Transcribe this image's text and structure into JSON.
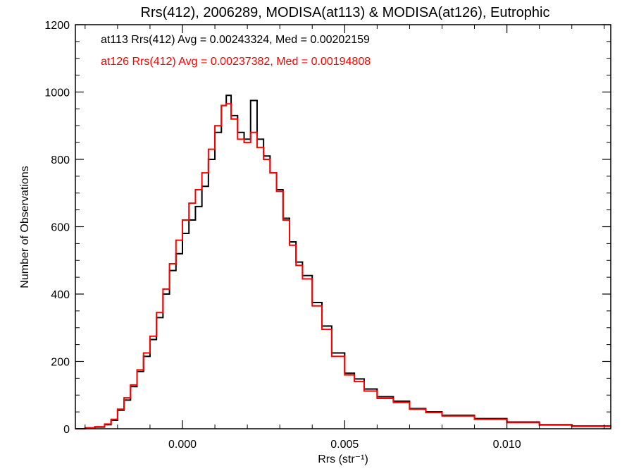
{
  "chart_data": {
    "type": "line",
    "subtype": "histogram-step",
    "title": "Rrs(412), 2006289, MODISA(at113) & MODISA(at126), Eutrophic",
    "xlabel": "Rrs (str⁻¹)",
    "ylabel": "Number of Observations",
    "xlim": [
      -0.0033,
      0.0132
    ],
    "ylim": [
      0,
      1200
    ],
    "x_ticks": [
      0.0,
      0.005,
      0.01
    ],
    "x_tick_labels": [
      "0.000",
      "0.005",
      "0.010"
    ],
    "y_ticks": [
      0,
      200,
      400,
      600,
      800,
      1000,
      1200
    ],
    "y_tick_labels": [
      "0",
      "200",
      "400",
      "600",
      "800",
      "1000",
      "1200"
    ],
    "grid": false,
    "annotations": [
      {
        "text": "at113 Rrs(412) Avg = 0.00243324, Med = 0.00202159",
        "color": "#000000"
      },
      {
        "text": "at126 Rrs(412) Avg = 0.00237382, Med = 0.00194808",
        "color": "#ff0000"
      }
    ],
    "series": [
      {
        "color": "#000000",
        "x": [
          -0.0033,
          -0.003,
          -0.0027,
          -0.0024,
          -0.0022,
          -0.002,
          -0.0018,
          -0.0016,
          -0.0014,
          -0.0012,
          -0.001,
          -0.0008,
          -0.0006,
          -0.0004,
          -0.0002,
          0.0,
          0.0002,
          0.0004,
          0.0006,
          0.0008,
          0.001,
          0.0012,
          0.00135,
          0.0015,
          0.0017,
          0.0019,
          0.0021,
          0.0023,
          0.0025,
          0.0027,
          0.0029,
          0.0031,
          0.0033,
          0.0035,
          0.0037,
          0.004,
          0.0043,
          0.0046,
          0.005,
          0.0053,
          0.0056,
          0.006,
          0.0065,
          0.007,
          0.0075,
          0.008,
          0.009,
          0.01,
          0.011,
          0.012,
          0.0132
        ],
        "values": [
          0,
          2,
          5,
          12,
          25,
          55,
          85,
          125,
          170,
          215,
          265,
          330,
          400,
          470,
          520,
          580,
          620,
          660,
          720,
          800,
          880,
          960,
          990,
          930,
          880,
          860,
          975,
          860,
          810,
          760,
          710,
          625,
          555,
          495,
          455,
          375,
          305,
          225,
          165,
          148,
          118,
          95,
          82,
          60,
          50,
          40,
          30,
          20,
          12,
          8,
          4
        ]
      },
      {
        "color": "#ff0000",
        "x": [
          -0.0033,
          -0.003,
          -0.0027,
          -0.0024,
          -0.0022,
          -0.002,
          -0.0018,
          -0.0016,
          -0.0014,
          -0.0012,
          -0.001,
          -0.0008,
          -0.0006,
          -0.0004,
          -0.0002,
          0.0,
          0.0002,
          0.0004,
          0.0006,
          0.0008,
          0.001,
          0.0012,
          0.00135,
          0.0015,
          0.0017,
          0.0019,
          0.0021,
          0.0023,
          0.0025,
          0.0027,
          0.0029,
          0.0031,
          0.0033,
          0.0035,
          0.0037,
          0.004,
          0.0043,
          0.0046,
          0.005,
          0.0053,
          0.0056,
          0.006,
          0.0065,
          0.007,
          0.0075,
          0.008,
          0.009,
          0.01,
          0.011,
          0.012,
          0.0132
        ],
        "values": [
          0,
          3,
          6,
          14,
          28,
          58,
          92,
          130,
          175,
          225,
          275,
          345,
          415,
          490,
          560,
          620,
          670,
          710,
          760,
          830,
          900,
          960,
          965,
          920,
          860,
          850,
          880,
          835,
          800,
          760,
          705,
          620,
          545,
          485,
          445,
          365,
          295,
          215,
          160,
          140,
          112,
          90,
          78,
          58,
          48,
          38,
          28,
          18,
          11,
          7,
          3
        ]
      }
    ]
  }
}
